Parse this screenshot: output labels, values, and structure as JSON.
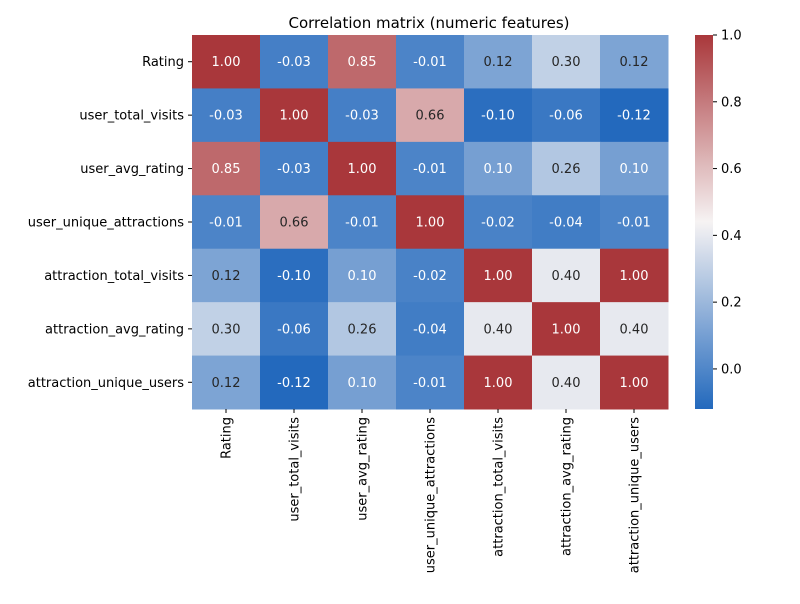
{
  "chart_data": {
    "type": "heatmap",
    "title": "Correlation matrix (numeric features)",
    "xlabel": "",
    "ylabel": "",
    "labels": [
      "Rating",
      "user_total_visits",
      "user_avg_rating",
      "user_unique_attractions",
      "attraction_total_visits",
      "attraction_avg_rating",
      "attraction_unique_users"
    ],
    "values": [
      [
        1.0,
        -0.03,
        0.85,
        -0.01,
        0.12,
        0.3,
        0.12
      ],
      [
        -0.03,
        1.0,
        -0.03,
        0.66,
        -0.1,
        -0.06,
        -0.12
      ],
      [
        0.85,
        -0.03,
        1.0,
        -0.01,
        0.1,
        0.26,
        0.1
      ],
      [
        -0.01,
        0.66,
        -0.01,
        1.0,
        -0.02,
        -0.04,
        -0.01
      ],
      [
        0.12,
        -0.1,
        0.1,
        -0.02,
        1.0,
        0.4,
        1.0
      ],
      [
        0.3,
        -0.06,
        0.26,
        -0.04,
        0.4,
        1.0,
        0.4
      ],
      [
        0.12,
        -0.12,
        0.1,
        -0.01,
        1.0,
        0.4,
        1.0
      ]
    ],
    "colorbar": {
      "min": -0.12,
      "max": 1.0,
      "ticks": [
        0.0,
        0.2,
        0.4,
        0.6,
        0.8,
        1.0
      ],
      "tick_labels": [
        "0.0",
        "0.2",
        "0.4",
        "0.6",
        "0.8",
        "1.0"
      ],
      "colormap": "vlag",
      "color_low": "#2369bd",
      "color_mid": "#f6f3f3",
      "color_high": "#a9373b"
    },
    "annotation_format": "2 decimals"
  }
}
